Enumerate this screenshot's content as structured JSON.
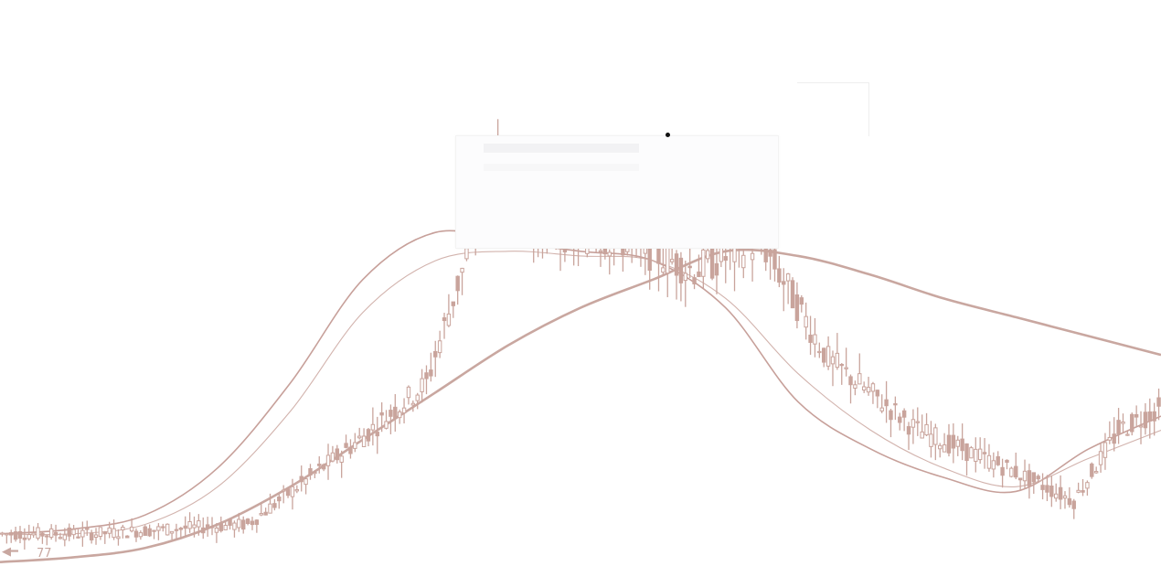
{
  "chart_data": {
    "type": "line",
    "chart_kind": "candlestick-with-moving-averages",
    "title": "",
    "xlabel": "",
    "ylabel": "",
    "grid": false,
    "legend": "none",
    "colors": {
      "candles": "#c9a49c",
      "ma_short": "#c7a09a",
      "ma_mid": "#d2b3ad",
      "ma_long": "#c9a7a0",
      "background": "#ffffff"
    },
    "price_label": "77",
    "ylim": [
      0,
      100
    ],
    "candles": {
      "count": 260,
      "segments": [
        {
          "to": 20,
          "value": 8
        },
        {
          "to": 55,
          "value": 10
        },
        {
          "to": 80,
          "value": 28
        },
        {
          "to": 95,
          "value": 40
        },
        {
          "to": 105,
          "value": 70
        },
        {
          "to": 110,
          "value": 88
        },
        {
          "to": 120,
          "value": 73
        },
        {
          "to": 140,
          "value": 70
        },
        {
          "to": 155,
          "value": 64
        },
        {
          "to": 170,
          "value": 70
        },
        {
          "to": 185,
          "value": 45
        },
        {
          "to": 205,
          "value": 30
        },
        {
          "to": 225,
          "value": 22
        },
        {
          "to": 240,
          "value": 15
        },
        {
          "to": 250,
          "value": 30
        },
        {
          "to": 260,
          "value": 35
        }
      ]
    },
    "series": [
      {
        "values": [
          8,
          9,
          12,
          22,
          40,
          62,
          72,
          70,
          68,
          66,
          56,
          36,
          26,
          20,
          17,
          26,
          33
        ]
      },
      {
        "values": [
          8,
          8,
          10,
          18,
          34,
          55,
          66,
          68,
          67,
          66,
          58,
          42,
          30,
          22,
          18,
          24,
          30
        ]
      },
      {
        "values": [
          2,
          3,
          5,
          10,
          18,
          28,
          38,
          48,
          56,
          62,
          68,
          67,
          63,
          58,
          54,
          50,
          46
        ]
      }
    ]
  }
}
